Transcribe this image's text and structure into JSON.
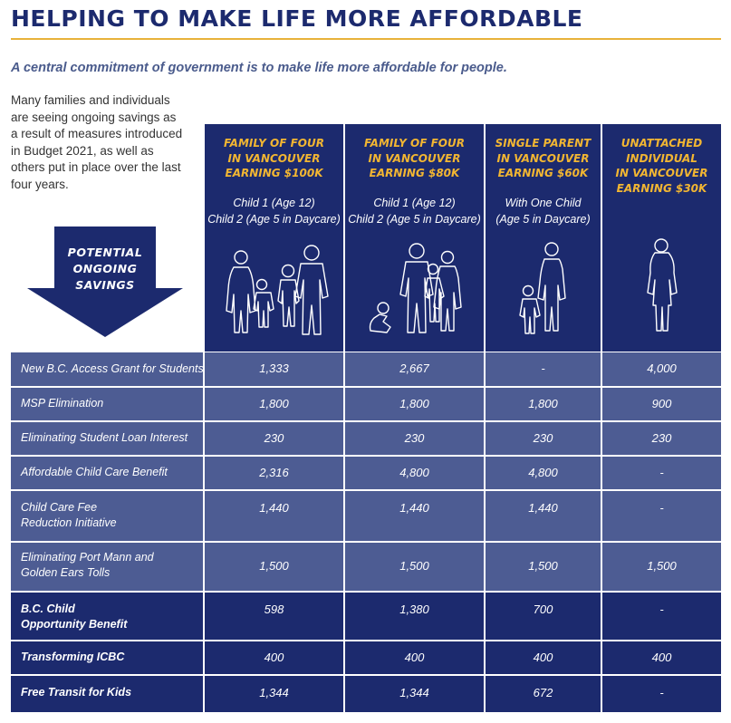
{
  "header": {
    "title": "HELPING TO MAKE LIFE MORE AFFORDABLE",
    "subtitle": "A central commitment of government is to make life more affordable for people.",
    "intro": "Many families and individuals\nare seeing ongoing savings as\na result of measures introduced\nin Budget 2021, as well as\nothers put in place over the last\nfour years."
  },
  "arrow_label": "POTENTIAL\nONGOING\nSAVINGS",
  "columns": [
    {
      "title": "FAMILY OF FOUR\nIN VANCOUVER\nEARNING $100K",
      "subtitle": "Child 1 (Age 12)\nChild 2 (Age 5 in Daycare)",
      "icon": "family-of-four-icon"
    },
    {
      "title": "FAMILY OF FOUR\nIN VANCOUVER\nEARNING $80K",
      "subtitle": "Child 1 (Age 12)\nChild 2 (Age 5 in Daycare)",
      "icon": "family-of-four-icon"
    },
    {
      "title": "SINGLE PARENT\nIN VANCOUVER\nEARNING $60K",
      "subtitle": "With One Child\n(Age 5 in Daycare)",
      "icon": "single-parent-icon"
    },
    {
      "title": "UNATTACHED\nINDIVIDUAL\nIN VANCOUVER\nEARNING $30K",
      "subtitle": "",
      "icon": "individual-icon"
    }
  ],
  "rows": [
    {
      "label": "New B.C. Access Grant for Students",
      "values": [
        "1,333",
        "2,667",
        "-",
        "4,000"
      ],
      "style": "light"
    },
    {
      "label": "MSP Elimination",
      "values": [
        "1,800",
        "1,800",
        "1,800",
        "900"
      ],
      "style": "light"
    },
    {
      "label": "Eliminating Student Loan Interest",
      "values": [
        "230",
        "230",
        "230",
        "230"
      ],
      "style": "light"
    },
    {
      "label": "Affordable Child Care Benefit",
      "values": [
        "2,316",
        "4,800",
        "4,800",
        "-"
      ],
      "style": "light"
    },
    {
      "label": "Child Care Fee\nReduction Initiative",
      "values": [
        "1,440",
        "1,440",
        "1,440",
        "-"
      ],
      "style": "light"
    },
    {
      "label": "Eliminating Port Mann and\nGolden Ears Tolls",
      "values": [
        "1,500",
        "1,500",
        "1,500",
        "1,500"
      ],
      "style": "light"
    },
    {
      "label": "B.C. Child\nOpportunity Benefit",
      "values": [
        "598",
        "1,380",
        "700",
        "-"
      ],
      "style": "dark"
    },
    {
      "label": "Transforming ICBC",
      "values": [
        "400",
        "400",
        "400",
        "400"
      ],
      "style": "dark"
    },
    {
      "label": "Free Transit for Kids",
      "values": [
        "1,344",
        "1,344",
        "672",
        "-"
      ],
      "style": "dark"
    }
  ],
  "colors": {
    "navy": "#1c2a6e",
    "row_light": "#4d5c93",
    "gold": "#f2b632",
    "rule": "#e8b23a"
  }
}
